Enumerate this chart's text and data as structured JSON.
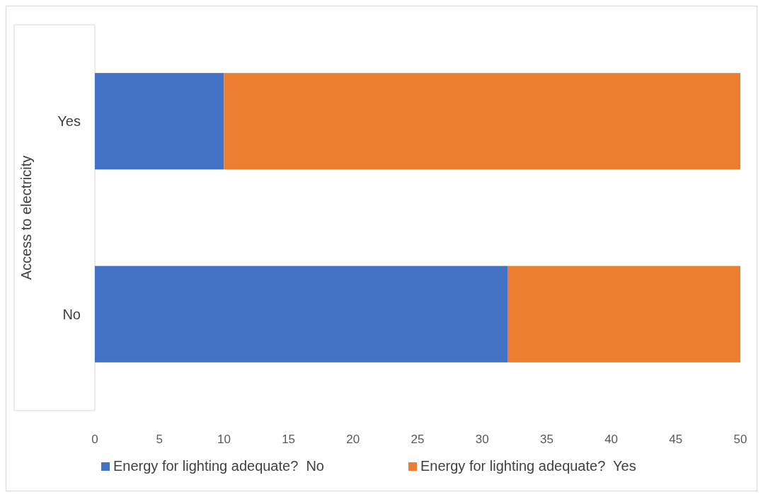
{
  "chart_data": {
    "type": "bar",
    "orientation": "horizontal",
    "stacked": true,
    "ylabel": "Access to electricity",
    "categories": [
      "Yes",
      "No"
    ],
    "series": [
      {
        "name": "Energy for lighting adequate?  No",
        "color": "#4472c4",
        "values": [
          10,
          32
        ]
      },
      {
        "name": "Energy for lighting adequate?  Yes",
        "color": "#ed7d31",
        "values": [
          40,
          18
        ]
      }
    ],
    "xlim": [
      0,
      50
    ],
    "xticks": [
      0,
      5,
      10,
      15,
      20,
      25,
      30,
      35,
      40,
      45,
      50
    ],
    "grid": false,
    "legend": "bottom"
  }
}
